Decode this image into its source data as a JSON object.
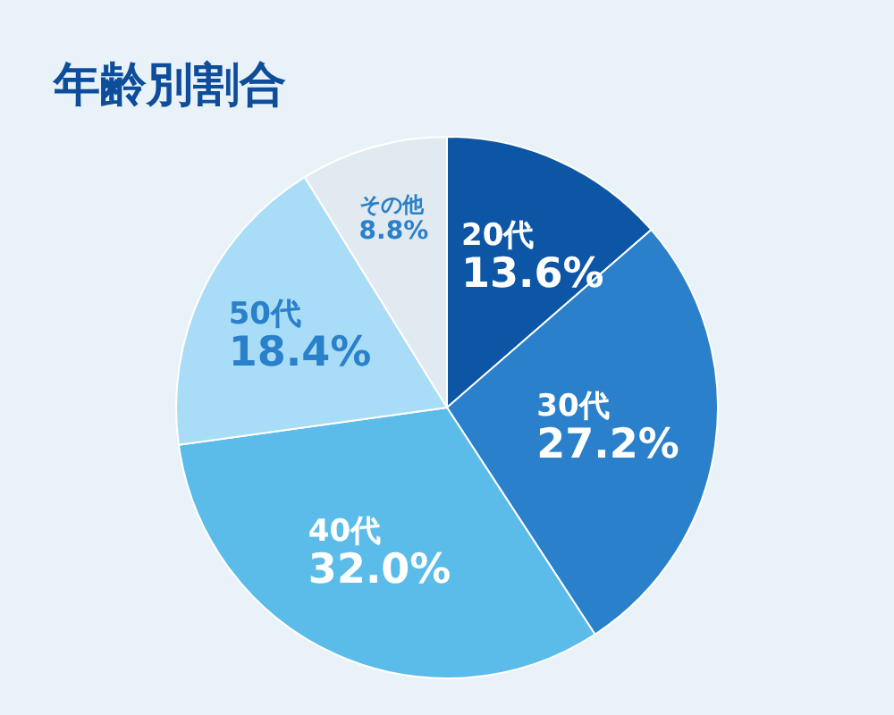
{
  "chart_data": {
    "type": "pie",
    "title": "年齢別割合",
    "categories": [
      "20代",
      "30代",
      "40代",
      "50代",
      "その他"
    ],
    "values": [
      13.6,
      27.2,
      32.0,
      18.4,
      8.8
    ],
    "value_labels": [
      "13.6%",
      "27.2%",
      "32.0%",
      "18.4%",
      "8.8%"
    ],
    "colors": [
      "#0d56a6",
      "#2a80ca",
      "#5bbcea",
      "#a9dcf6",
      "#e1eaf0"
    ]
  }
}
